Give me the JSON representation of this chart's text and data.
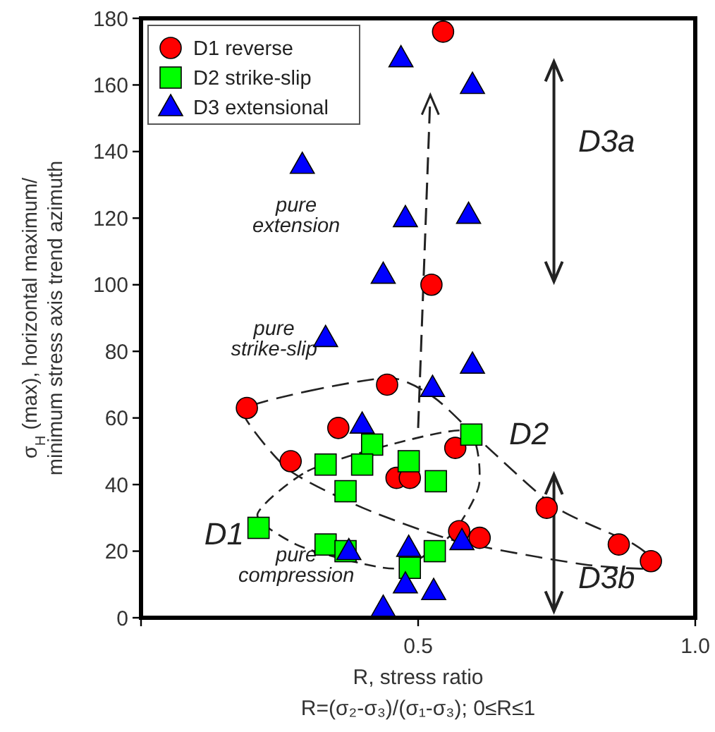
{
  "chart_data": {
    "type": "scatter",
    "xlabel": "R, stress ratio\nR=(σ₂-σ₃)/(σ₁-σ₃); 0≤R≤1",
    "ylabel": "σ$_{H}$ (max), horizontal maximum/ minimum stress axis trend azimuth",
    "xlim": [
      0,
      1
    ],
    "ylim": [
      0,
      180
    ],
    "xticks": [
      {
        "value": 0,
        "label": null
      },
      {
        "value": 0.5,
        "label": "0.5"
      },
      {
        "value": 1,
        "label": "1.0"
      }
    ],
    "yticks": [
      0,
      20,
      40,
      60,
      80,
      100,
      120,
      140,
      160,
      180
    ],
    "grid": false,
    "legend": "top left",
    "series": [
      {
        "name": "D1 reverse",
        "color": "#ff0000",
        "marker": "circle",
        "x": [
          0.545,
          0.524,
          0.444,
          0.191,
          0.356,
          0.567,
          0.27,
          0.461,
          0.485,
          0.732,
          0.574,
          0.611,
          0.862,
          0.92
        ],
        "values": [
          176,
          100,
          70,
          63,
          57,
          51,
          47,
          42,
          42,
          33,
          26,
          24,
          22,
          17
        ]
      },
      {
        "name": "D2 strike-slip",
        "color": "#00ff00",
        "marker": "square",
        "x": [
          0.596,
          0.417,
          0.333,
          0.399,
          0.483,
          0.532,
          0.369,
          0.212,
          0.333,
          0.369,
          0.53,
          0.485
        ],
        "values": [
          55,
          52,
          46,
          46,
          47,
          41,
          38,
          27,
          22,
          20,
          20,
          15
        ]
      },
      {
        "name": "D3 extensional",
        "color": "#0000ff",
        "marker": "triangle",
        "x": [
          0.469,
          0.598,
          0.291,
          0.477,
          0.591,
          0.437,
          0.333,
          0.598,
          0.526,
          0.399,
          0.375,
          0.483,
          0.579,
          0.477,
          0.528,
          0.437
        ],
        "values": [
          168,
          160,
          136,
          120,
          121,
          103,
          84,
          76,
          69,
          58,
          20,
          21,
          23,
          10,
          8,
          3
        ]
      }
    ],
    "annotations": [
      "pure extension",
      "pure strike-slip",
      "pure compression",
      "D1",
      "D2",
      "D3a",
      "D3b"
    ]
  }
}
